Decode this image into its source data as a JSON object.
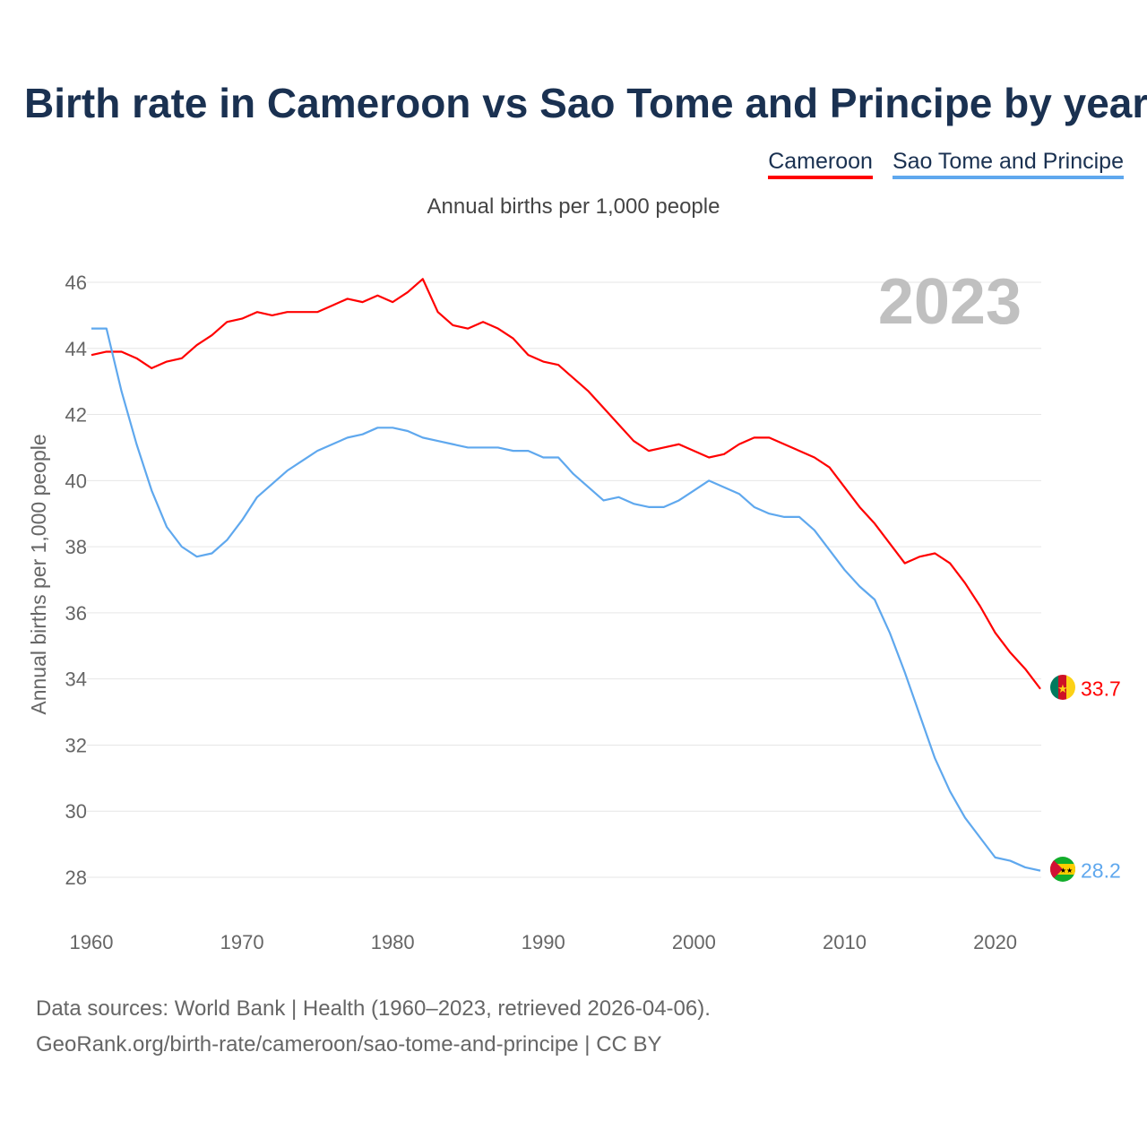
{
  "chart_data": {
    "type": "line",
    "title": "Birth rate in Cameroon vs Sao Tome and Principe by year",
    "subtitle": "Annual births per 1,000 people",
    "xlabel": "",
    "ylabel": "Annual births per 1,000 people",
    "year_label": "2023",
    "xlim": [
      1960,
      2023
    ],
    "ylim": [
      28,
      46
    ],
    "x_ticks": [
      1960,
      1970,
      1980,
      1990,
      2000,
      2010,
      2020
    ],
    "y_ticks": [
      28,
      30,
      32,
      34,
      36,
      38,
      40,
      42,
      44,
      46
    ],
    "grid": true,
    "legend_placement": "top-right",
    "x": [
      1960,
      1961,
      1962,
      1963,
      1964,
      1965,
      1966,
      1967,
      1968,
      1969,
      1970,
      1971,
      1972,
      1973,
      1974,
      1975,
      1976,
      1977,
      1978,
      1979,
      1980,
      1981,
      1982,
      1983,
      1984,
      1985,
      1986,
      1987,
      1988,
      1989,
      1990,
      1991,
      1992,
      1993,
      1994,
      1995,
      1996,
      1997,
      1998,
      1999,
      2000,
      2001,
      2002,
      2003,
      2004,
      2005,
      2006,
      2007,
      2008,
      2009,
      2010,
      2011,
      2012,
      2013,
      2014,
      2015,
      2016,
      2017,
      2018,
      2019,
      2020,
      2021,
      2022,
      2023
    ],
    "series": [
      {
        "name": "Cameroon",
        "color": "#ff0000",
        "end_label": "33.7",
        "values": [
          43.8,
          43.9,
          43.9,
          43.7,
          43.4,
          43.6,
          43.7,
          44.1,
          44.4,
          44.8,
          44.9,
          45.1,
          45.0,
          45.1,
          45.1,
          45.1,
          45.3,
          45.5,
          45.4,
          45.6,
          45.4,
          45.7,
          46.1,
          45.1,
          44.7,
          44.6,
          44.8,
          44.6,
          44.3,
          43.8,
          43.6,
          43.5,
          43.1,
          42.7,
          42.2,
          41.7,
          41.2,
          40.9,
          41.0,
          41.1,
          40.9,
          40.7,
          40.8,
          41.1,
          41.3,
          41.3,
          41.1,
          40.9,
          40.7,
          40.4,
          39.8,
          39.2,
          38.7,
          38.1,
          37.5,
          37.7,
          37.8,
          37.5,
          36.9,
          36.2,
          35.4,
          34.8,
          34.3,
          33.7
        ]
      },
      {
        "name": "Sao Tome and Principe",
        "color": "#5fa8ee",
        "end_label": "28.2",
        "values": [
          44.6,
          44.6,
          42.7,
          41.1,
          39.7,
          38.6,
          38.0,
          37.7,
          37.8,
          38.2,
          38.8,
          39.5,
          39.9,
          40.3,
          40.6,
          40.9,
          41.1,
          41.3,
          41.4,
          41.6,
          41.6,
          41.5,
          41.3,
          41.2,
          41.1,
          41.0,
          41.0,
          41.0,
          40.9,
          40.9,
          40.7,
          40.7,
          40.2,
          39.8,
          39.4,
          39.5,
          39.3,
          39.2,
          39.2,
          39.4,
          39.7,
          40.0,
          39.8,
          39.6,
          39.2,
          39.0,
          38.9,
          38.9,
          38.5,
          37.9,
          37.3,
          36.8,
          36.4,
          35.4,
          34.2,
          32.9,
          31.6,
          30.6,
          29.8,
          29.2,
          28.6,
          28.5,
          28.3,
          28.2
        ]
      }
    ]
  },
  "footer": {
    "line1": "Data sources: World Bank | Health (1960–2023, retrieved 2026-04-06).",
    "line2": "GeoRank.org/birth-rate/cameroon/sao-tome-and-principe | CC BY"
  }
}
